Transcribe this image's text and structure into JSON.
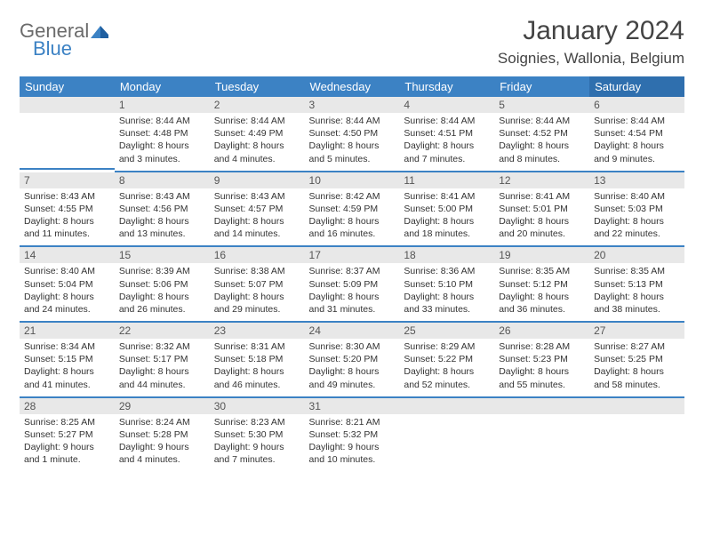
{
  "logo": {
    "text1": "General",
    "text2": "Blue"
  },
  "title": "January 2024",
  "location": "Soignies, Wallonia, Belgium",
  "colors": {
    "header_bg": "#3c82c4",
    "header_sat_bg": "#2f6fae",
    "row_divider": "#3c82c4",
    "daynum_bg": "#e8e8e8",
    "logo_gray": "#6b6b6b",
    "logo_blue": "#3c82c4"
  },
  "weekdays": [
    "Sunday",
    "Monday",
    "Tuesday",
    "Wednesday",
    "Thursday",
    "Friday",
    "Saturday"
  ],
  "weeks": [
    [
      null,
      {
        "n": "1",
        "sunrise": "Sunrise: 8:44 AM",
        "sunset": "Sunset: 4:48 PM",
        "daylight": "Daylight: 8 hours and 3 minutes."
      },
      {
        "n": "2",
        "sunrise": "Sunrise: 8:44 AM",
        "sunset": "Sunset: 4:49 PM",
        "daylight": "Daylight: 8 hours and 4 minutes."
      },
      {
        "n": "3",
        "sunrise": "Sunrise: 8:44 AM",
        "sunset": "Sunset: 4:50 PM",
        "daylight": "Daylight: 8 hours and 5 minutes."
      },
      {
        "n": "4",
        "sunrise": "Sunrise: 8:44 AM",
        "sunset": "Sunset: 4:51 PM",
        "daylight": "Daylight: 8 hours and 7 minutes."
      },
      {
        "n": "5",
        "sunrise": "Sunrise: 8:44 AM",
        "sunset": "Sunset: 4:52 PM",
        "daylight": "Daylight: 8 hours and 8 minutes."
      },
      {
        "n": "6",
        "sunrise": "Sunrise: 8:44 AM",
        "sunset": "Sunset: 4:54 PM",
        "daylight": "Daylight: 8 hours and 9 minutes."
      }
    ],
    [
      {
        "n": "7",
        "sunrise": "Sunrise: 8:43 AM",
        "sunset": "Sunset: 4:55 PM",
        "daylight": "Daylight: 8 hours and 11 minutes."
      },
      {
        "n": "8",
        "sunrise": "Sunrise: 8:43 AM",
        "sunset": "Sunset: 4:56 PM",
        "daylight": "Daylight: 8 hours and 13 minutes."
      },
      {
        "n": "9",
        "sunrise": "Sunrise: 8:43 AM",
        "sunset": "Sunset: 4:57 PM",
        "daylight": "Daylight: 8 hours and 14 minutes."
      },
      {
        "n": "10",
        "sunrise": "Sunrise: 8:42 AM",
        "sunset": "Sunset: 4:59 PM",
        "daylight": "Daylight: 8 hours and 16 minutes."
      },
      {
        "n": "11",
        "sunrise": "Sunrise: 8:41 AM",
        "sunset": "Sunset: 5:00 PM",
        "daylight": "Daylight: 8 hours and 18 minutes."
      },
      {
        "n": "12",
        "sunrise": "Sunrise: 8:41 AM",
        "sunset": "Sunset: 5:01 PM",
        "daylight": "Daylight: 8 hours and 20 minutes."
      },
      {
        "n": "13",
        "sunrise": "Sunrise: 8:40 AM",
        "sunset": "Sunset: 5:03 PM",
        "daylight": "Daylight: 8 hours and 22 minutes."
      }
    ],
    [
      {
        "n": "14",
        "sunrise": "Sunrise: 8:40 AM",
        "sunset": "Sunset: 5:04 PM",
        "daylight": "Daylight: 8 hours and 24 minutes."
      },
      {
        "n": "15",
        "sunrise": "Sunrise: 8:39 AM",
        "sunset": "Sunset: 5:06 PM",
        "daylight": "Daylight: 8 hours and 26 minutes."
      },
      {
        "n": "16",
        "sunrise": "Sunrise: 8:38 AM",
        "sunset": "Sunset: 5:07 PM",
        "daylight": "Daylight: 8 hours and 29 minutes."
      },
      {
        "n": "17",
        "sunrise": "Sunrise: 8:37 AM",
        "sunset": "Sunset: 5:09 PM",
        "daylight": "Daylight: 8 hours and 31 minutes."
      },
      {
        "n": "18",
        "sunrise": "Sunrise: 8:36 AM",
        "sunset": "Sunset: 5:10 PM",
        "daylight": "Daylight: 8 hours and 33 minutes."
      },
      {
        "n": "19",
        "sunrise": "Sunrise: 8:35 AM",
        "sunset": "Sunset: 5:12 PM",
        "daylight": "Daylight: 8 hours and 36 minutes."
      },
      {
        "n": "20",
        "sunrise": "Sunrise: 8:35 AM",
        "sunset": "Sunset: 5:13 PM",
        "daylight": "Daylight: 8 hours and 38 minutes."
      }
    ],
    [
      {
        "n": "21",
        "sunrise": "Sunrise: 8:34 AM",
        "sunset": "Sunset: 5:15 PM",
        "daylight": "Daylight: 8 hours and 41 minutes."
      },
      {
        "n": "22",
        "sunrise": "Sunrise: 8:32 AM",
        "sunset": "Sunset: 5:17 PM",
        "daylight": "Daylight: 8 hours and 44 minutes."
      },
      {
        "n": "23",
        "sunrise": "Sunrise: 8:31 AM",
        "sunset": "Sunset: 5:18 PM",
        "daylight": "Daylight: 8 hours and 46 minutes."
      },
      {
        "n": "24",
        "sunrise": "Sunrise: 8:30 AM",
        "sunset": "Sunset: 5:20 PM",
        "daylight": "Daylight: 8 hours and 49 minutes."
      },
      {
        "n": "25",
        "sunrise": "Sunrise: 8:29 AM",
        "sunset": "Sunset: 5:22 PM",
        "daylight": "Daylight: 8 hours and 52 minutes."
      },
      {
        "n": "26",
        "sunrise": "Sunrise: 8:28 AM",
        "sunset": "Sunset: 5:23 PM",
        "daylight": "Daylight: 8 hours and 55 minutes."
      },
      {
        "n": "27",
        "sunrise": "Sunrise: 8:27 AM",
        "sunset": "Sunset: 5:25 PM",
        "daylight": "Daylight: 8 hours and 58 minutes."
      }
    ],
    [
      {
        "n": "28",
        "sunrise": "Sunrise: 8:25 AM",
        "sunset": "Sunset: 5:27 PM",
        "daylight": "Daylight: 9 hours and 1 minute."
      },
      {
        "n": "29",
        "sunrise": "Sunrise: 8:24 AM",
        "sunset": "Sunset: 5:28 PM",
        "daylight": "Daylight: 9 hours and 4 minutes."
      },
      {
        "n": "30",
        "sunrise": "Sunrise: 8:23 AM",
        "sunset": "Sunset: 5:30 PM",
        "daylight": "Daylight: 9 hours and 7 minutes."
      },
      {
        "n": "31",
        "sunrise": "Sunrise: 8:21 AM",
        "sunset": "Sunset: 5:32 PM",
        "daylight": "Daylight: 9 hours and 10 minutes."
      },
      null,
      null,
      null
    ]
  ]
}
